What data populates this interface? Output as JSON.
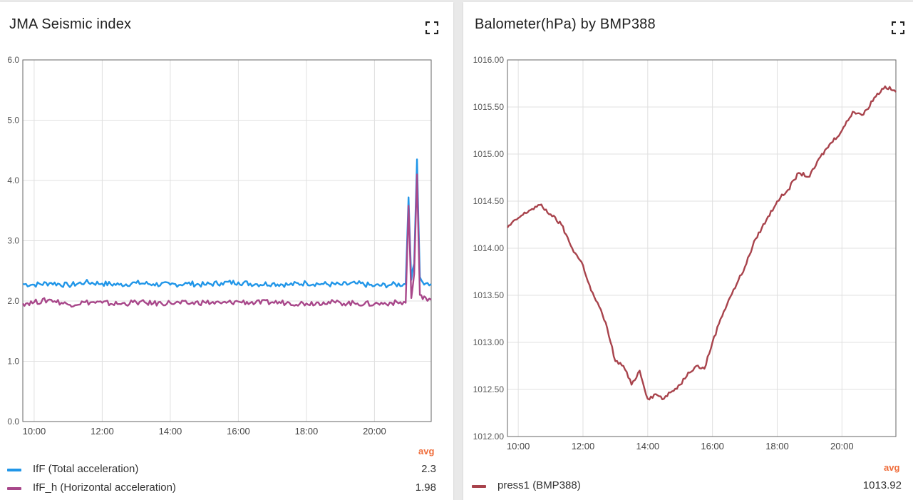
{
  "panels": [
    {
      "title": "JMA Seismic index",
      "avg_header": "avg",
      "colors": [
        "#2196e8",
        "#a8478a"
      ],
      "legend": [
        {
          "label": "IfF (Total acceleration)",
          "value": "2.3"
        },
        {
          "label": "IfF_h (Horizontal acceleration)",
          "value": "1.98"
        }
      ]
    },
    {
      "title": "Balometer(hPa) by BMP388",
      "avg_header": "avg",
      "colors": [
        "#a8434c"
      ],
      "legend": [
        {
          "label": "press1 (BMP388)",
          "value": "1013.92"
        }
      ]
    }
  ],
  "chart_data": [
    {
      "type": "line",
      "title": "JMA Seismic index",
      "x_range": [
        "09:40",
        "21:40"
      ],
      "x_ticks": [
        "10:00",
        "12:00",
        "14:00",
        "16:00",
        "18:00",
        "20:00"
      ],
      "y_ticks": [
        "0.0",
        "1.0",
        "2.0",
        "3.0",
        "4.0",
        "5.0",
        "6.0"
      ],
      "ylim": [
        0,
        6
      ],
      "grid": true,
      "legend_position": "bottom",
      "series": [
        {
          "name": "IfF (Total acceleration)",
          "color": "#2196e8",
          "x": [
            "09:40",
            "10:00",
            "10:30",
            "11:00",
            "11:30",
            "12:00",
            "12:30",
            "13:00",
            "13:30",
            "14:00",
            "14:30",
            "15:00",
            "15:30",
            "16:00",
            "16:30",
            "17:00",
            "17:30",
            "18:00",
            "18:30",
            "19:00",
            "19:30",
            "20:00",
            "20:30",
            "20:55",
            "21:00",
            "21:05",
            "21:10",
            "21:15",
            "21:20",
            "21:25",
            "21:30",
            "21:40"
          ],
          "y": [
            2.28,
            2.27,
            2.3,
            2.26,
            2.31,
            2.29,
            2.27,
            2.3,
            2.28,
            2.27,
            2.29,
            2.27,
            2.3,
            2.31,
            2.28,
            2.29,
            2.27,
            2.3,
            2.28,
            2.27,
            2.29,
            2.25,
            2.27,
            2.28,
            3.72,
            2.35,
            2.62,
            4.35,
            2.4,
            2.31,
            2.29,
            2.28
          ]
        },
        {
          "name": "IfF_h (Horizontal acceleration)",
          "color": "#a8478a",
          "x": [
            "09:40",
            "10:00",
            "10:30",
            "11:00",
            "11:30",
            "12:00",
            "12:30",
            "13:00",
            "13:30",
            "14:00",
            "14:30",
            "15:00",
            "15:30",
            "16:00",
            "16:30",
            "17:00",
            "17:30",
            "18:00",
            "18:30",
            "19:00",
            "19:30",
            "20:00",
            "20:30",
            "20:55",
            "21:00",
            "21:05",
            "21:10",
            "21:15",
            "21:20",
            "21:25",
            "21:30",
            "21:40"
          ],
          "y": [
            1.96,
            1.98,
            2.02,
            1.94,
            1.98,
            1.97,
            1.95,
            1.98,
            1.96,
            1.97,
            1.96,
            1.98,
            1.96,
            1.99,
            1.97,
            1.98,
            1.97,
            1.96,
            1.98,
            1.97,
            1.96,
            1.95,
            1.97,
            1.97,
            3.58,
            2.05,
            2.45,
            4.1,
            2.1,
            2.03,
            2.06,
            2.02
          ]
        }
      ]
    },
    {
      "type": "line",
      "title": "Balometer(hPa) by BMP388",
      "x_range": [
        "09:40",
        "21:40"
      ],
      "x_ticks": [
        "10:00",
        "12:00",
        "14:00",
        "16:00",
        "18:00",
        "20:00"
      ],
      "y_ticks": [
        "1012.00",
        "1012.50",
        "1013.00",
        "1013.50",
        "1014.00",
        "1014.50",
        "1015.00",
        "1015.50",
        "1016.00"
      ],
      "ylim": [
        1012.0,
        1016.0
      ],
      "grid": true,
      "legend_position": "bottom",
      "series": [
        {
          "name": "press1 (BMP388)",
          "color": "#a8434c",
          "x": [
            "09:40",
            "10:00",
            "10:20",
            "10:40",
            "11:00",
            "11:20",
            "11:40",
            "12:00",
            "12:15",
            "12:30",
            "12:45",
            "13:00",
            "13:15",
            "13:30",
            "13:45",
            "14:00",
            "14:15",
            "14:30",
            "14:45",
            "15:00",
            "15:15",
            "15:30",
            "15:45",
            "16:00",
            "16:15",
            "16:30",
            "16:45",
            "17:00",
            "17:20",
            "17:40",
            "18:00",
            "18:20",
            "18:40",
            "19:00",
            "19:20",
            "19:40",
            "20:00",
            "20:20",
            "20:40",
            "21:00",
            "21:20",
            "21:40"
          ],
          "y": [
            1014.22,
            1014.32,
            1014.4,
            1014.46,
            1014.36,
            1014.25,
            1014.0,
            1013.82,
            1013.55,
            1013.38,
            1013.15,
            1012.8,
            1012.75,
            1012.55,
            1012.7,
            1012.4,
            1012.45,
            1012.4,
            1012.48,
            1012.55,
            1012.68,
            1012.75,
            1012.72,
            1013.0,
            1013.25,
            1013.45,
            1013.62,
            1013.8,
            1014.1,
            1014.3,
            1014.5,
            1014.62,
            1014.8,
            1014.76,
            1014.97,
            1015.12,
            1015.25,
            1015.45,
            1015.42,
            1015.6,
            1015.72,
            1015.66
          ]
        }
      ]
    }
  ]
}
